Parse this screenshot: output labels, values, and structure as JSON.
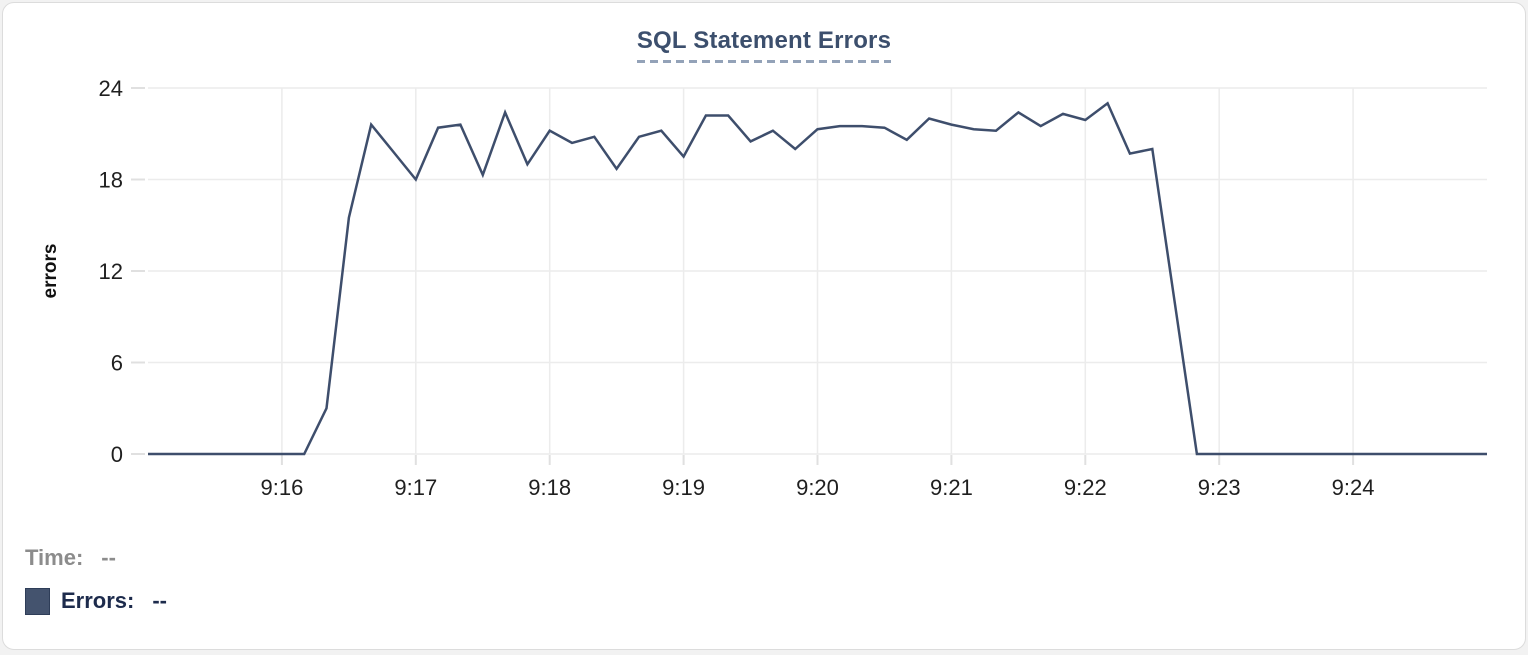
{
  "chart": {
    "title": "SQL Statement Errors",
    "ylabel": "errors"
  },
  "legend": {
    "time_label": "Time:",
    "time_value": "--",
    "errors_label": "Errors:",
    "errors_value": "--",
    "swatch_color": "#44536e"
  },
  "colors": {
    "line": "#3e4e6c",
    "title_text": "#3c4f6d",
    "title_underline": "#93a2b8",
    "grid": "#ececec",
    "tick": "#e0e0e0",
    "axis_text": "#1f1f1f",
    "time_text": "#8c8c8c",
    "errors_text": "#1d2b4c",
    "card_border": "#dcdcdc"
  },
  "chart_data": {
    "type": "line",
    "title": "SQL Statement Errors",
    "xlabel": "",
    "ylabel": "errors",
    "ylim": [
      0,
      24
    ],
    "yticks": [
      0,
      6,
      12,
      18,
      24
    ],
    "xticks": [
      "9:16",
      "9:17",
      "9:18",
      "9:19",
      "9:20",
      "9:21",
      "9:22",
      "9:23",
      "9:24"
    ],
    "x_domain": [
      "9:15:00",
      "9:25:00"
    ],
    "grid": true,
    "legend_position": "bottom-left",
    "series": [
      {
        "name": "Errors",
        "color": "#3e4e6c",
        "x": [
          "9:15:00",
          "9:15:10",
          "9:15:20",
          "9:15:30",
          "9:15:40",
          "9:15:50",
          "9:16:00",
          "9:16:10",
          "9:16:20",
          "9:16:30",
          "9:16:40",
          "9:16:50",
          "9:17:00",
          "9:17:10",
          "9:17:20",
          "9:17:30",
          "9:17:40",
          "9:17:50",
          "9:18:00",
          "9:18:10",
          "9:18:20",
          "9:18:30",
          "9:18:40",
          "9:18:50",
          "9:19:00",
          "9:19:10",
          "9:19:20",
          "9:19:30",
          "9:19:40",
          "9:19:50",
          "9:20:00",
          "9:20:10",
          "9:20:20",
          "9:20:30",
          "9:20:40",
          "9:20:50",
          "9:21:00",
          "9:21:10",
          "9:21:20",
          "9:21:30",
          "9:21:40",
          "9:21:50",
          "9:22:00",
          "9:22:10",
          "9:22:20",
          "9:22:30",
          "9:22:40",
          "9:22:50",
          "9:23:00",
          "9:23:10",
          "9:23:20",
          "9:23:30",
          "9:23:40",
          "9:23:50",
          "9:24:00",
          "9:24:10",
          "9:24:20",
          "9:24:30",
          "9:24:40",
          "9:24:50",
          "9:25:00"
        ],
        "values": [
          0,
          0,
          0,
          0,
          0,
          0,
          0,
          0,
          3,
          15.5,
          21.6,
          19.8,
          18,
          21.4,
          21.6,
          18.3,
          22.4,
          19,
          21.2,
          20.4,
          20.8,
          18.7,
          20.8,
          21.2,
          19.5,
          22.2,
          22.2,
          20.5,
          21.2,
          20,
          21.3,
          21.5,
          21.5,
          21.4,
          20.6,
          22,
          21.6,
          21.3,
          21.2,
          22.4,
          21.5,
          22.3,
          21.9,
          23,
          19.7,
          20,
          10,
          0,
          0,
          0,
          0,
          0,
          0,
          0,
          0,
          0,
          0,
          0,
          0,
          0,
          0
        ]
      }
    ]
  }
}
